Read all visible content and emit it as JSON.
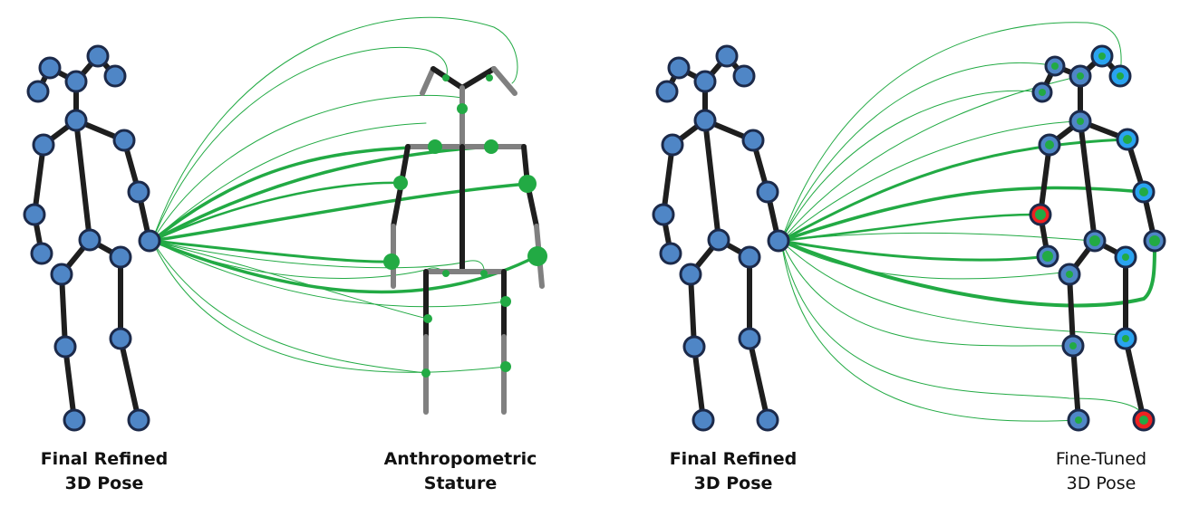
{
  "captions": {
    "left_pose": [
      "Final Refined",
      "3D Pose"
    ],
    "stature": [
      "Anthropometric",
      "Stature"
    ],
    "middle_pose": [
      "Final Refined",
      "3D Pose"
    ],
    "finetuned_pose": [
      "Fine-Tuned",
      "3D Pose"
    ]
  },
  "colors": {
    "joint_fill": "#4f86c6",
    "joint_stroke": "#1c2a4a",
    "bone": "#1e1e1e",
    "stature_gray": "#808080",
    "connection_green": "#22aa44",
    "highlight_ring": "#ee2222",
    "bright_joint": "#2aa3f0"
  }
}
